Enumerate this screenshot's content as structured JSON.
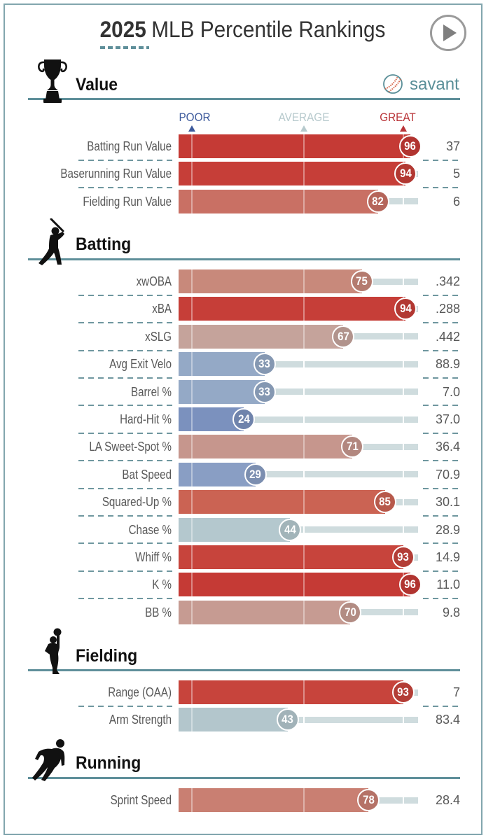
{
  "header": {
    "title_year": "2025",
    "title_rest": "MLB Percentile Rankings",
    "play_icon": "play-circle-icon"
  },
  "brand": {
    "name": "savant",
    "color": "#5a8f98"
  },
  "chart_data": {
    "type": "bar",
    "orientation": "horizontal",
    "title": "2025 MLB Percentile Rankings",
    "xlabel": "Percentile",
    "xlim": [
      0,
      100
    ],
    "legend": {
      "poor": "POOR",
      "average": "AVERAGE",
      "great": "GREAT",
      "poor_color": "#3d5a9c",
      "average_color": "#b7cacd",
      "great_color": "#b93438"
    },
    "sections": [
      {
        "name": "Value",
        "icon": "trophy-icon",
        "metrics": [
          {
            "label": "Batting Run Value",
            "percentile": 96,
            "value": "37",
            "color": "#c53a35"
          },
          {
            "label": "Baserunning Run Value",
            "percentile": 94,
            "value": "5",
            "color": "#c63e38"
          },
          {
            "label": "Fielding Run Value",
            "percentile": 82,
            "value": "6",
            "color": "#c97064"
          }
        ]
      },
      {
        "name": "Batting",
        "icon": "batter-icon",
        "metrics": [
          {
            "label": "xwOBA",
            "percentile": 75,
            "value": ".342",
            "color": "#c8897b"
          },
          {
            "label": "xBA",
            "percentile": 94,
            "value": ".288",
            "color": "#c63e38"
          },
          {
            "label": "xSLG",
            "percentile": 67,
            "value": ".442",
            "color": "#c5a39b"
          },
          {
            "label": "Avg Exit Velo",
            "percentile": 33,
            "value": "88.9",
            "color": "#94a9c6"
          },
          {
            "label": "Barrel %",
            "percentile": 33,
            "value": "7.0",
            "color": "#94a9c6"
          },
          {
            "label": "Hard-Hit %",
            "percentile": 24,
            "value": "37.0",
            "color": "#7b91be"
          },
          {
            "label": "LA Sweet-Spot %",
            "percentile": 71,
            "value": "36.4",
            "color": "#c6968d"
          },
          {
            "label": "Bat Speed",
            "percentile": 29,
            "value": "70.9",
            "color": "#899ec4"
          },
          {
            "label": "Squared-Up %",
            "percentile": 85,
            "value": "30.1",
            "color": "#cb6353"
          },
          {
            "label": "Chase %",
            "percentile": 44,
            "value": "28.9",
            "color": "#b4c8ce"
          },
          {
            "label": "Whiff %",
            "percentile": 93,
            "value": "14.9",
            "color": "#c7443c"
          },
          {
            "label": "K %",
            "percentile": 96,
            "value": "11.0",
            "color": "#c53a35"
          },
          {
            "label": "BB %",
            "percentile": 70,
            "value": "9.8",
            "color": "#c69b92"
          }
        ]
      },
      {
        "name": "Fielding",
        "icon": "fielder-icon",
        "metrics": [
          {
            "label": "Range (OAA)",
            "percentile": 93,
            "value": "7",
            "color": "#c7443c"
          },
          {
            "label": "Arm Strength",
            "percentile": 43,
            "value": "83.4",
            "color": "#b3c6cc"
          }
        ]
      },
      {
        "name": "Running",
        "icon": "runner-icon",
        "metrics": [
          {
            "label": "Sprint Speed",
            "percentile": 78,
            "value": "28.4",
            "color": "#c97f72"
          }
        ]
      }
    ]
  }
}
